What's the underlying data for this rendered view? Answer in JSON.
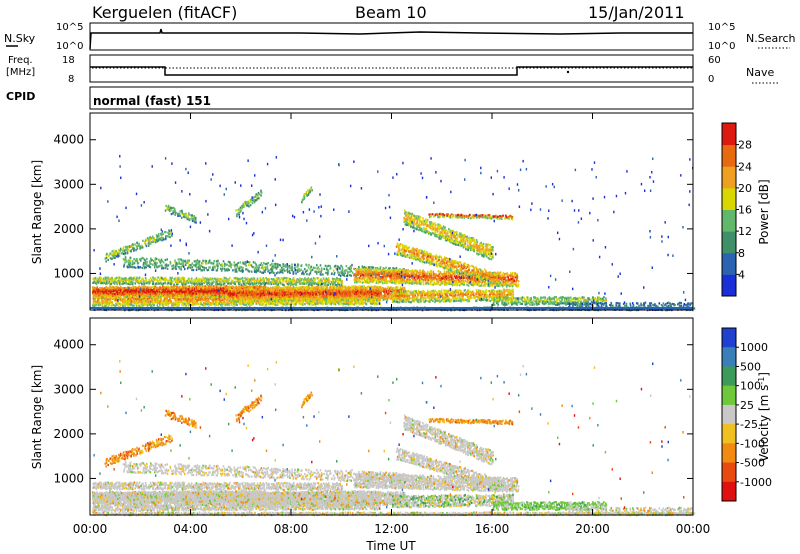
{
  "header": {
    "station": "Kerguelen (fitACF)",
    "beam": "Beam 10",
    "date": "15/Jan/2011"
  },
  "top_panels": {
    "nsky_label": "N.Sky",
    "nsearch_label": "N.Search",
    "nsky_ticks": [
      "10^5",
      "10^0"
    ],
    "freq_label_line1": "Freq.",
    "freq_label_line2": "[MHz]",
    "freq_ticks": [
      "18",
      "8"
    ],
    "nave_label": "Nave",
    "nave_ticks": [
      "60",
      "0"
    ],
    "cpid_label": "CPID",
    "cpid_value": "normal (fast) 151"
  },
  "chart_data": [
    {
      "type": "heatmap",
      "name": "power",
      "ylabel": "Slant Range [km]",
      "xlabel": "",
      "x_ticks": [
        "00:00",
        "04:00",
        "08:00",
        "12:00",
        "16:00",
        "20:00",
        "00:00"
      ],
      "y_ticks": [
        1000,
        2000,
        3000,
        4000
      ],
      "ylim": [
        180,
        4600
      ],
      "colorbar": {
        "label": "Power [dB]",
        "ticks": [
          "4",
          "8",
          "12",
          "16",
          "20",
          "24",
          "28"
        ],
        "colors": [
          "#1b2fd8",
          "#2b63b0",
          "#3f8f6a",
          "#62b86a",
          "#d8d800",
          "#f0a020",
          "#e86a10",
          "#dc1a10"
        ]
      }
    },
    {
      "type": "heatmap",
      "name": "velocity",
      "ylabel": "Slant Range [km]",
      "xlabel": "Time UT",
      "x_ticks": [
        "00:00",
        "04:00",
        "08:00",
        "12:00",
        "16:00",
        "20:00",
        "00:00"
      ],
      "y_ticks": [
        1000,
        2000,
        3000,
        4000
      ],
      "ylim": [
        180,
        4600
      ],
      "colorbar": {
        "label": "Velocity [m s",
        "label_sup": "-1",
        "label_end": "]",
        "ticks": [
          "1000",
          "500",
          "100",
          "25",
          "-25",
          "-100",
          "-500",
          "-1000"
        ],
        "colors": [
          "#2040d0",
          "#3a7fb8",
          "#3c9a5a",
          "#6ec83a",
          "#c8c8c8",
          "#f0c020",
          "#f08a10",
          "#e84a10",
          "#e01010"
        ]
      }
    }
  ]
}
